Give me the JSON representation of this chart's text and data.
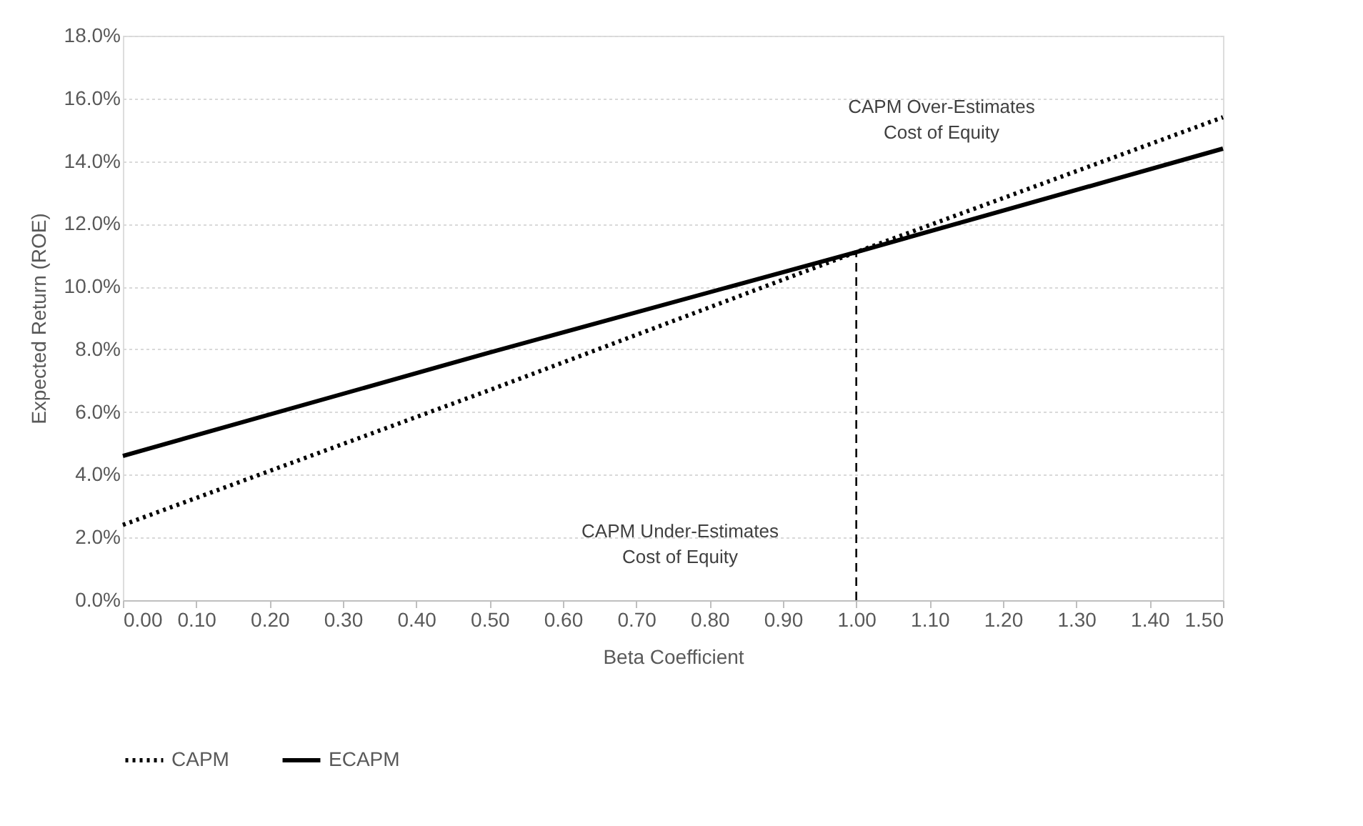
{
  "chart_data": {
    "type": "line",
    "xlabel": "Beta Coefficient",
    "ylabel": "Expected Return (ROE)",
    "x": [
      0,
      0.5,
      1.0,
      1.5
    ],
    "series": [
      {
        "name": "CAPM",
        "color": "#000000",
        "line_style": "dotted",
        "values": [
          2.4,
          6.7,
          11.1,
          15.4
        ]
      },
      {
        "name": "ECAPM",
        "color": "#000000",
        "line_style": "solid",
        "values": [
          4.6,
          7.9,
          11.1,
          14.4
        ]
      }
    ],
    "xlim": [
      0,
      1.5
    ],
    "xticks": [
      {
        "value": 0,
        "label": "0.00"
      },
      {
        "value": 0.1,
        "label": "0.10"
      },
      {
        "value": 0.2,
        "label": "0.20"
      },
      {
        "value": 0.3,
        "label": "0.30"
      },
      {
        "value": 0.4,
        "label": "0.40"
      },
      {
        "value": 0.5,
        "label": "0.50"
      },
      {
        "value": 0.6,
        "label": "0.60"
      },
      {
        "value": 0.7,
        "label": "0.70"
      },
      {
        "value": 0.8,
        "label": "0.80"
      },
      {
        "value": 0.9,
        "label": "0.90"
      },
      {
        "value": 1.0,
        "label": "1.00"
      },
      {
        "value": 1.1,
        "label": "1.10"
      },
      {
        "value": 1.2,
        "label": "1.20"
      },
      {
        "value": 1.3,
        "label": "1.30"
      },
      {
        "value": 1.4,
        "label": "1.40"
      },
      {
        "value": 1.5,
        "label": "1.50"
      }
    ],
    "ylim": [
      0,
      18
    ],
    "yticks": [
      {
        "value": 0,
        "label": "0.0%"
      },
      {
        "value": 2,
        "label": "2.0%"
      },
      {
        "value": 4,
        "label": "4.0%"
      },
      {
        "value": 6,
        "label": "6.0%"
      },
      {
        "value": 8,
        "label": "8.0%"
      },
      {
        "value": 10,
        "label": "10.0%"
      },
      {
        "value": 12,
        "label": "12.0%"
      },
      {
        "value": 14,
        "label": "14.0%"
      },
      {
        "value": 16,
        "label": "16.0%"
      },
      {
        "value": 18,
        "label": "18.0%"
      }
    ],
    "ref_lines": [
      {
        "axis": "x",
        "value": 1.0,
        "line_style": "dashed",
        "color": "#000000"
      }
    ],
    "annotations": [
      "CAPM Over-Estimates\nCost of Equity",
      "CAPM Under-Estimates\nCost of Equity"
    ],
    "grid": "y",
    "legend": "bottom",
    "marker": "none"
  }
}
